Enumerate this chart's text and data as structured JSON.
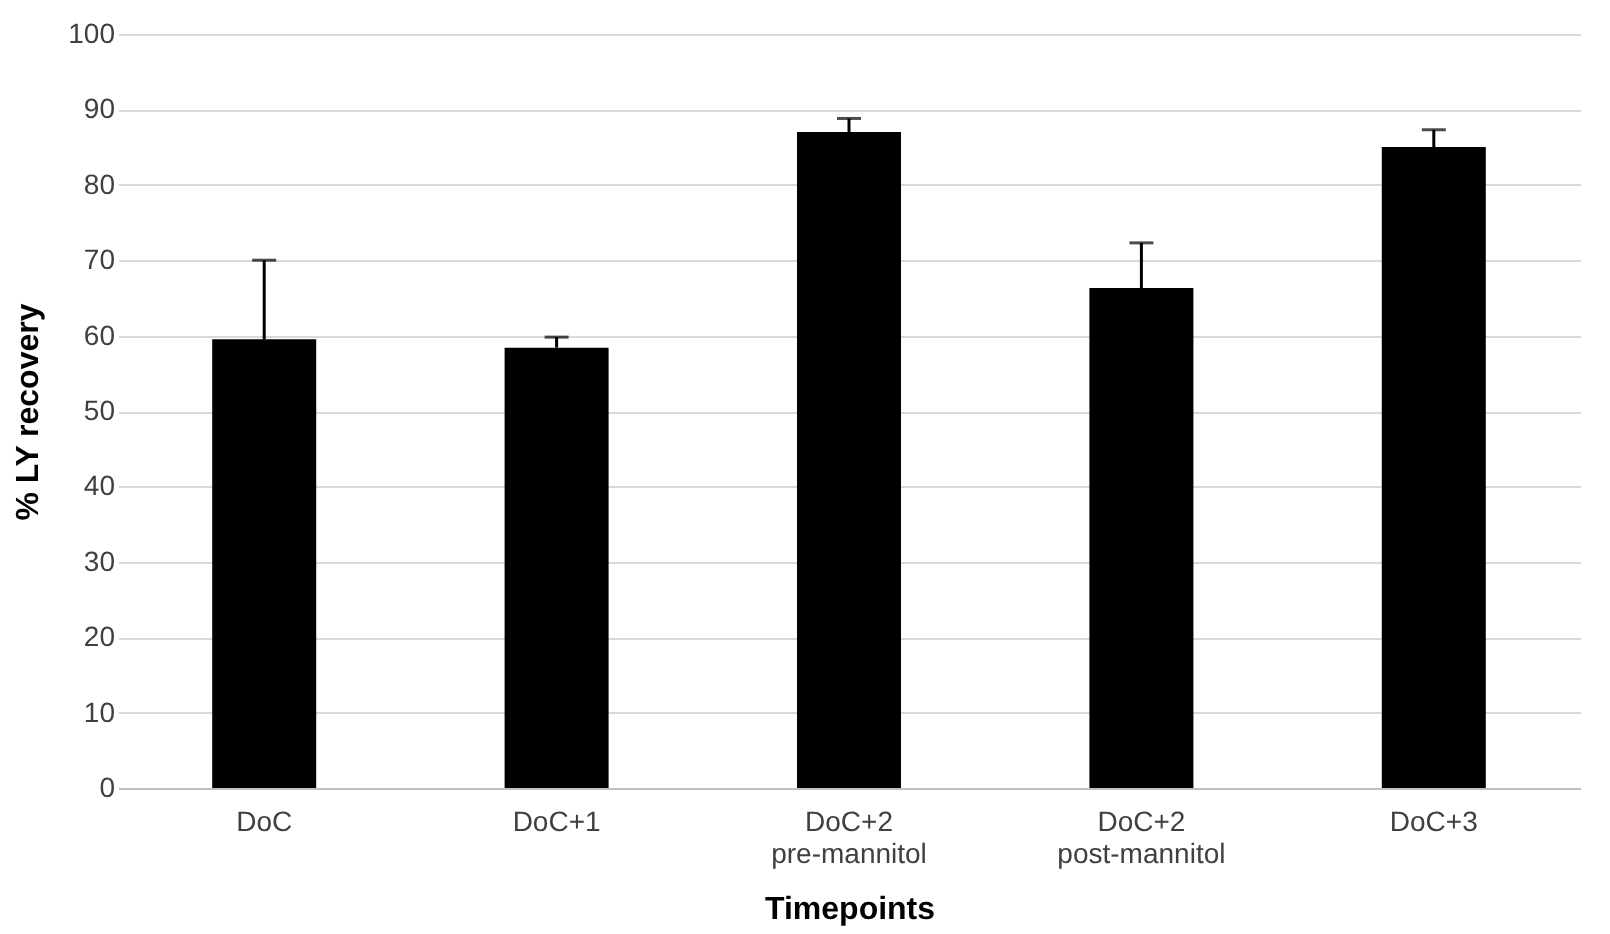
{
  "chart_data": {
    "type": "bar",
    "xlabel": "Timepoints",
    "ylabel": "% LY recovery",
    "categories": [
      "DoC",
      "DoC+1",
      "DoC+2 pre-mannitol",
      "DoC+2 post-mannitol",
      "DoC+3"
    ],
    "values": [
      59.5,
      58.4,
      87,
      66.3,
      85
    ],
    "errors": [
      [
        59.5,
        70
      ],
      [
        58.4,
        59.8
      ],
      [
        87,
        88.8
      ],
      [
        66.3,
        72.3
      ],
      [
        85,
        87.3
      ]
    ],
    "color": "#000000",
    "ylim": [
      0,
      100
    ],
    "yticks": [
      0,
      10,
      20,
      30,
      40,
      50,
      60,
      70,
      80,
      90,
      100
    ],
    "grid": "y"
  }
}
